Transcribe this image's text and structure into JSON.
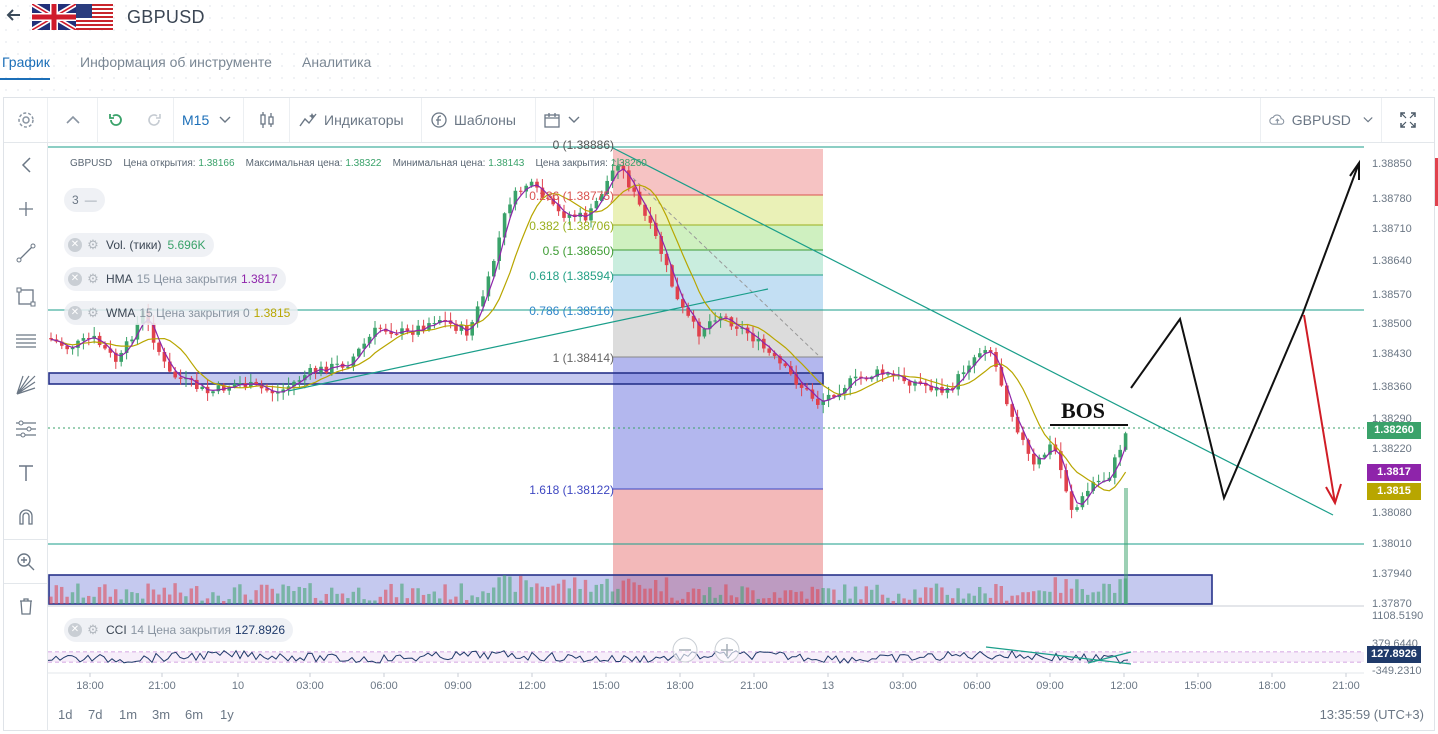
{
  "header": {
    "back_icon": "arrow-left-icon",
    "symbol": "GBPUSD"
  },
  "tabs": [
    {
      "label": "График",
      "active": true
    },
    {
      "label": "Информация об инструменте",
      "active": false
    },
    {
      "label": "Аналитика",
      "active": false
    }
  ],
  "toolbar": {
    "timeframe": "M15",
    "indicators_label": "Индикаторы",
    "templates_label": "Шаблоны",
    "symbol_select": "GBPUSD"
  },
  "legend": {
    "symbol": "GBPUSD",
    "open_label": "Цена открытия:",
    "open_value": "1.38166",
    "high_label": "Максимальная цена:",
    "high_value": "1.38322",
    "low_label": "Минимальная цена:",
    "low_value": "1.38143",
    "close_label": "Цена закрытия:",
    "close_value": "1.38260",
    "collapsed_count": "3"
  },
  "indicators": [
    {
      "name": "Vol. (тики)",
      "params": "",
      "value": "5.696K",
      "color": "#3aa26a"
    },
    {
      "name": "HMA",
      "params": "15 Цена закрытия",
      "value": "1.3817",
      "color": "#8e24aa"
    },
    {
      "name": "WMA",
      "params": "15 Цена закрытия 0",
      "value": "1.3815",
      "color": "#b8a600"
    }
  ],
  "cci": {
    "name": "CCI",
    "params": "14 Цена закрытия",
    "value": "127.8926"
  },
  "fib_labels": [
    {
      "text": "0 (1.38886)",
      "color": "#555555"
    },
    {
      "text": "0.236 (1.38775)",
      "color": "#d9534f"
    },
    {
      "text": "0.382 (1.38706)",
      "color": "#9aaf1c"
    },
    {
      "text": "0.5 (1.38650)",
      "color": "#3f9c35"
    },
    {
      "text": "0.618 (1.38594)",
      "color": "#23a085"
    },
    {
      "text": "0.786 (1.38516)",
      "color": "#2f86c9"
    },
    {
      "text": "1 (1.38414)",
      "color": "#666666"
    },
    {
      "text": "1.618 (1.38122)",
      "color": "#3f48c2"
    }
  ],
  "annotation": "BOS",
  "price_axis": [
    "1.38850",
    "1.38780",
    "1.38710",
    "1.38640",
    "1.38570",
    "1.38500",
    "1.38430",
    "1.38360",
    "1.38290",
    "1.38220",
    "1.38080",
    "1.38010",
    "1.37940",
    "1.37870"
  ],
  "price_tags": [
    {
      "text": "1.38260",
      "color": "#3aa26a"
    },
    {
      "text": "1.3817",
      "color": "#8e24aa"
    },
    {
      "text": "1.3815",
      "color": "#b8a600"
    }
  ],
  "cci_axis": [
    "1108.5190",
    "379.6440",
    "-349.2310"
  ],
  "cci_tag": {
    "text": "127.8926",
    "color": "#1f3a6a"
  },
  "time_axis": [
    "18:00",
    "21:00",
    "10",
    "03:00",
    "06:00",
    "09:00",
    "12:00",
    "15:00",
    "18:00",
    "21:00",
    "13",
    "03:00",
    "06:00",
    "09:00",
    "12:00",
    "15:00",
    "18:00",
    "21:00"
  ],
  "ranges": [
    "1d",
    "7d",
    "1m",
    "3m",
    "6m",
    "1y"
  ],
  "clock": "13:35:59 (UTC+3)",
  "colors": {
    "accent": "#1c6fb8",
    "up": "#3aa26a",
    "down": "#e0424d"
  }
}
